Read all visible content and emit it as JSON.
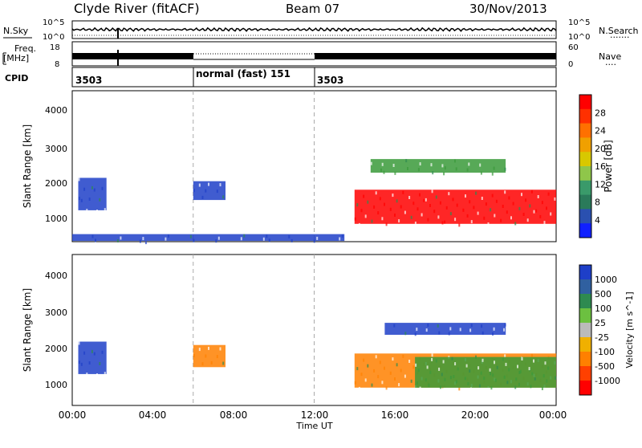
{
  "header": {
    "station": "Clyde River (fitACF)",
    "beam": "Beam 07",
    "date": "30/Nov/2013"
  },
  "noise_panel": {
    "left_label": "N.Sky",
    "left_ticks": [
      "10^5",
      "10^0"
    ],
    "right_label": "N.Search",
    "right_ticks": [
      "10^5",
      "10^0"
    ]
  },
  "freq_panel": {
    "left_label_1": "Freq.",
    "left_label_2": "[MHz]",
    "left_ticks": [
      "18",
      "8"
    ],
    "right_label": "Nave",
    "right_ticks": [
      "60",
      "0"
    ]
  },
  "cpid_panel": {
    "label": "CPID",
    "segments": [
      {
        "text": "3503",
        "start_hour": 0
      },
      {
        "text": "normal (fast) 151",
        "start_hour": 6
      },
      {
        "text": "3503",
        "start_hour": 12
      }
    ]
  },
  "x_axis": {
    "label": "Time UT",
    "ticks": [
      "00:00",
      "04:00",
      "08:00",
      "12:00",
      "16:00",
      "20:00",
      "00:00"
    ]
  },
  "colors": {
    "red": "#ff0000",
    "orange": "#ff8000",
    "yellow": "#e0c000",
    "green": "#3a9a3a",
    "blue": "#1e3fc8",
    "grey": "#bbbbbb"
  },
  "chart_data": [
    {
      "type": "heatmap",
      "title": "Power",
      "ylabel": "Slant Range [km]",
      "xlabel": "Time UT",
      "ylim": [
        180,
        4600
      ],
      "y_ticks": [
        "1000",
        "2000",
        "3000",
        "4000"
      ],
      "colorbar_label": "Power [dB]",
      "colorbar_ticks": [
        "28",
        "24",
        "20",
        "16",
        "12",
        "8",
        "4"
      ],
      "colorbar_colors": [
        "#ff0000",
        "#ff3000",
        "#ff7000",
        "#f0a000",
        "#d8c800",
        "#8fc64a",
        "#3a9a6a",
        "#2a7a5a",
        "#2a50b0",
        "#1020ff"
      ],
      "regions": [
        {
          "x0": 0.3,
          "x1": 1.7,
          "y0": 1100,
          "y1": 2050,
          "color": "blue"
        },
        {
          "x0": 6.0,
          "x1": 7.6,
          "y0": 1400,
          "y1": 1950,
          "color": "blue"
        },
        {
          "x0": 14.0,
          "x1": 24.0,
          "y0": 700,
          "y1": 1700,
          "color": "red"
        },
        {
          "x0": 14.8,
          "x1": 21.5,
          "y0": 2200,
          "y1": 2600,
          "color": "green"
        },
        {
          "x0": 0.0,
          "x1": 13.5,
          "y0": 200,
          "y1": 400,
          "color": "blue"
        }
      ]
    },
    {
      "type": "heatmap",
      "title": "Velocity",
      "ylabel": "Slant Range [km]",
      "xlabel": "Time UT",
      "ylim": [
        180,
        4600
      ],
      "y_ticks": [
        "1000",
        "2000",
        "3000",
        "4000"
      ],
      "colorbar_label": "Velocity [m s^-1]",
      "colorbar_ticks": [
        "1000",
        "500",
        "100",
        "25",
        "-25",
        "-100",
        "-500",
        "-1000"
      ],
      "colorbar_colors": [
        "#1e3fc8",
        "#3060a0",
        "#2e8a50",
        "#6cc040",
        "#bbbbbb",
        "#f0b000",
        "#ff8000",
        "#ff4000",
        "#ff0000"
      ],
      "regions": [
        {
          "x0": 0.3,
          "x1": 1.7,
          "y0": 1100,
          "y1": 2050,
          "color": "blue"
        },
        {
          "x0": 6.0,
          "x1": 7.6,
          "y0": 1300,
          "y1": 1950,
          "color": "orange"
        },
        {
          "x0": 14.0,
          "x1": 24.0,
          "y0": 700,
          "y1": 1700,
          "color": "orange"
        },
        {
          "x0": 17.0,
          "x1": 24.0,
          "y0": 700,
          "y1": 1600,
          "color": "green"
        },
        {
          "x0": 15.5,
          "x1": 21.5,
          "y0": 2250,
          "y1": 2600,
          "color": "blue"
        }
      ]
    }
  ]
}
